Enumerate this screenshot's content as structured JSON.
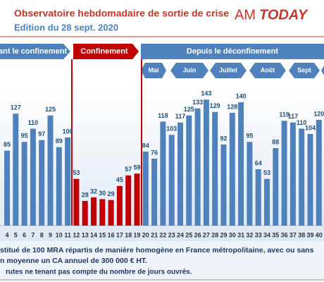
{
  "chart_data": {
    "type": "bar",
    "title": "Observatoire hebdomadaire de sortie de crise",
    "subtitle": "Edition du 28 sept. 2020",
    "logo": {
      "left": "AM",
      "right": "TODAY"
    },
    "categories": [
      "4",
      "5",
      "6",
      "7",
      "8",
      "9",
      "10",
      "11",
      "12",
      "13",
      "14",
      "15",
      "16",
      "17",
      "18",
      "19",
      "20",
      "21",
      "22",
      "23",
      "24",
      "25",
      "26",
      "27",
      "28",
      "29",
      "30",
      "31",
      "32",
      "33",
      "34",
      "35",
      "36",
      "37",
      "38",
      "39",
      "40"
    ],
    "values": [
      85,
      127,
      95,
      110,
      97,
      125,
      89,
      100,
      53,
      28,
      32,
      30,
      29,
      45,
      57,
      59,
      84,
      76,
      118,
      103,
      117,
      125,
      133,
      143,
      129,
      92,
      128,
      140,
      95,
      64,
      53,
      88,
      119,
      117,
      110,
      104,
      120
    ],
    "colors": [
      "#4f81bd",
      "#4f81bd",
      "#4f81bd",
      "#4f81bd",
      "#4f81bd",
      "#4f81bd",
      "#4f81bd",
      "#4f81bd",
      "#c00000",
      "#c00000",
      "#c00000",
      "#c00000",
      "#c00000",
      "#c00000",
      "#c00000",
      "#c00000",
      "#4f81bd",
      "#4f81bd",
      "#4f81bd",
      "#4f81bd",
      "#4f81bd",
      "#4f81bd",
      "#4f81bd",
      "#4f81bd",
      "#4f81bd",
      "#4f81bd",
      "#4f81bd",
      "#4f81bd",
      "#4f81bd",
      "#4f81bd",
      "#4f81bd",
      "#4f81bd",
      "#4f81bd",
      "#4f81bd",
      "#4f81bd",
      "#4f81bd",
      "#4f81bd"
    ],
    "ylim": [
      0,
      160
    ],
    "periods": [
      "ant le confinement",
      "Confinement",
      "Depuis le déconfinement"
    ],
    "months": [
      "Mai",
      "Juin",
      "Juillet",
      "Août",
      "Sept"
    ],
    "notes": [
      "stitué de 100 MRA répartis de manière homogène en France métropolitaine, avec ou sans",
      "n moyenne un CA annuel de 300 000 € HT.",
      "rutes ne tenant pas compte du nombre de jours ouvrés."
    ]
  }
}
